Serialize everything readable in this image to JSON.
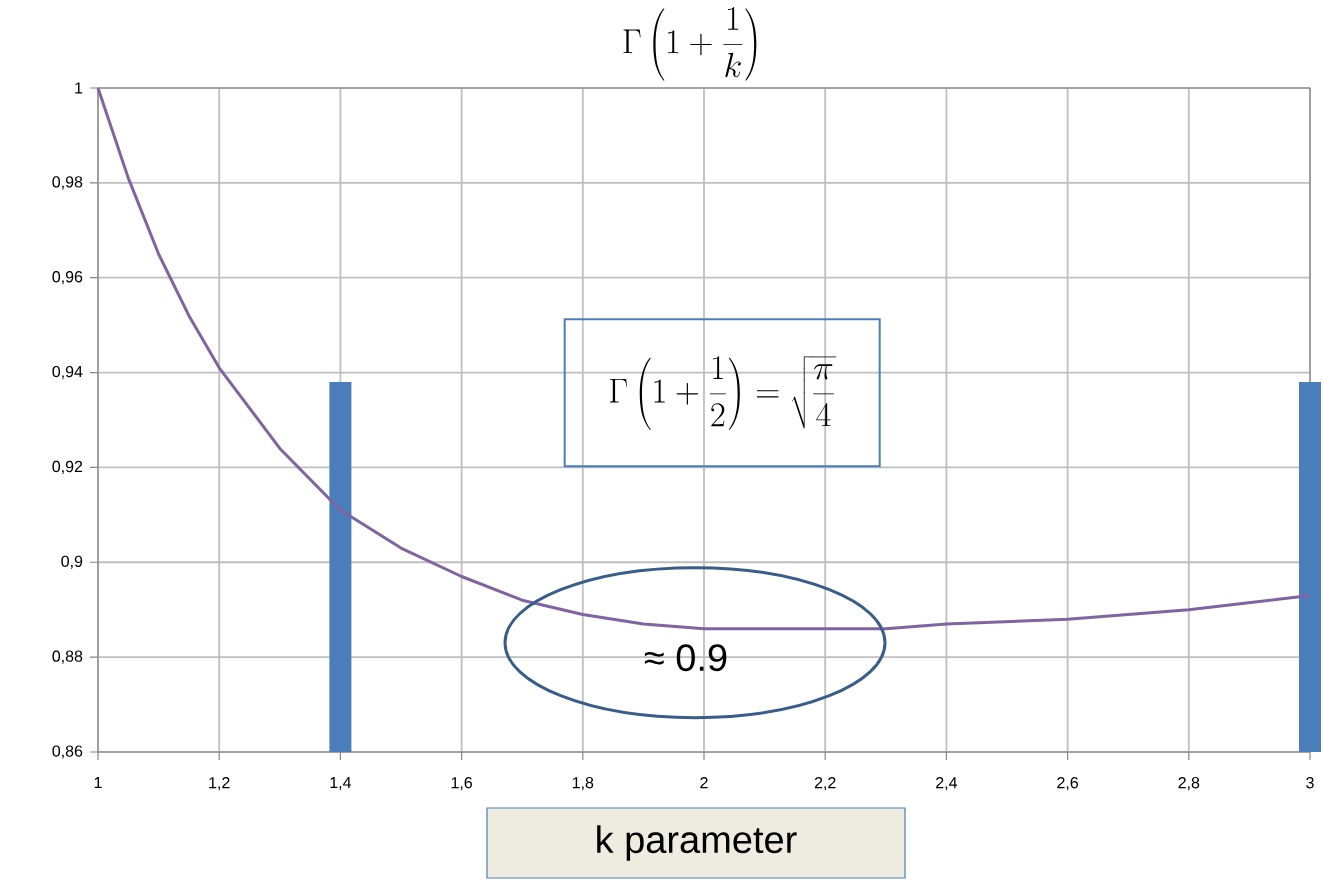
{
  "chart_data": {
    "type": "line",
    "title": "\\Gamma\\left(1+\\frac{1}{k}\\right)",
    "xlabel": "k parameter",
    "xlim": [
      1,
      3
    ],
    "ylim": [
      0.86,
      1
    ],
    "xticks": [
      1,
      {
        "value": 1.2,
        "label": "1,2"
      },
      {
        "value": 1.4,
        "label": "1,4"
      },
      {
        "value": 1.6,
        "label": "1,6"
      },
      {
        "value": 1.8,
        "label": "1,8"
      },
      2,
      {
        "value": 2.2,
        "label": "2,2"
      },
      {
        "value": 2.4,
        "label": "2,4"
      },
      {
        "value": 2.6,
        "label": "2,6"
      },
      {
        "value": 2.8,
        "label": "2,8"
      },
      3
    ],
    "yticks": [
      {
        "value": 0.86,
        "label": "0,86"
      },
      {
        "value": 0.88,
        "label": "0,88"
      },
      {
        "value": 0.9,
        "label": "0,9"
      },
      {
        "value": 0.92,
        "label": "0,92"
      },
      {
        "value": 0.94,
        "label": "0,94"
      },
      {
        "value": 0.96,
        "label": "0,96"
      },
      {
        "value": 0.98,
        "label": "0,98"
      },
      1
    ],
    "grid": true,
    "series": [
      {
        "color": "#8064a2",
        "x": [
          1,
          1.05,
          1.1,
          1.15,
          1.2,
          1.3,
          1.4,
          1.5,
          1.6,
          1.7,
          1.8,
          1.9,
          2,
          2.1,
          2.2,
          2.3,
          2.4,
          2.6,
          2.8,
          3
        ],
        "values": [
          1,
          0.981,
          0.965,
          0.952,
          0.941,
          0.924,
          0.911,
          0.903,
          0.897,
          0.892,
          0.889,
          0.887,
          0.886,
          0.886,
          0.886,
          0.886,
          0.887,
          0.888,
          0.89,
          0.893
        ]
      },
      {
        "type": "bar",
        "color": "#4a7ebb",
        "x": [
          1.4,
          3
        ],
        "values": [
          0.938,
          0.938
        ]
      }
    ],
    "annotations": [
      "\\Gamma\\left(1+\\frac{1}{2}\\right)=\\sqrt{\\frac{\\pi}{4}}",
      {
        "text": "≈ 0.9",
        "x": 2,
        "y": 0.886
      }
    ]
  }
}
